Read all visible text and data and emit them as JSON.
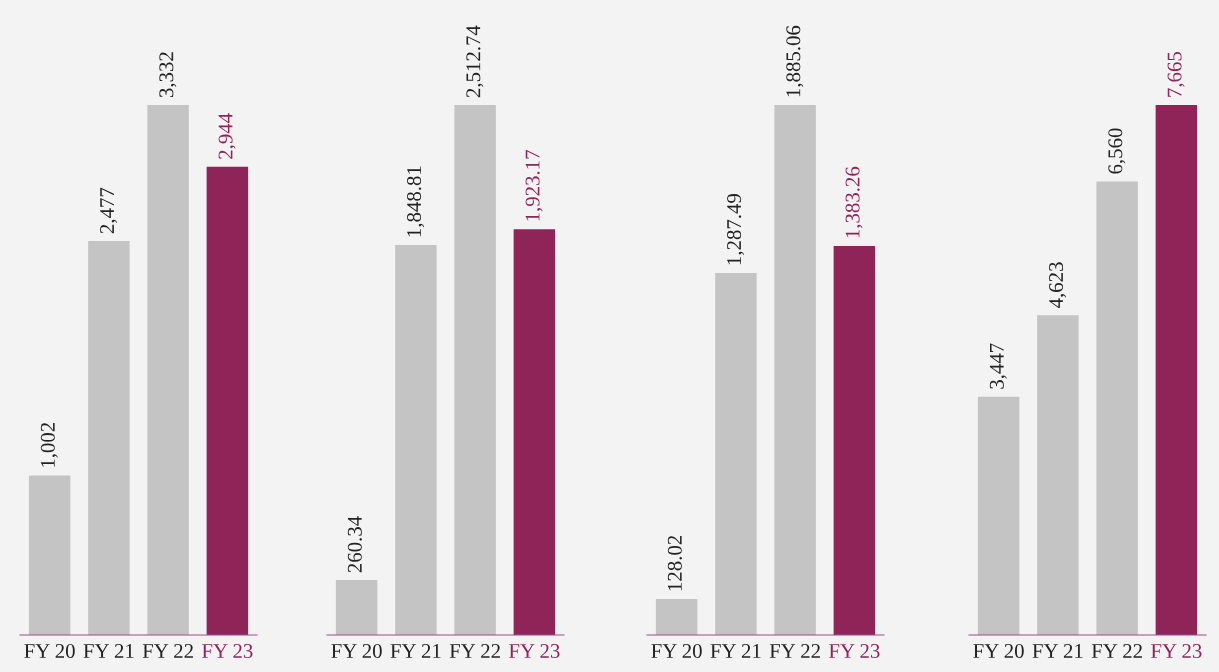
{
  "chart_data": [
    {
      "type": "bar",
      "categories": [
        "FY 20",
        "FY 21",
        "FY 22",
        "FY 23"
      ],
      "values": [
        1002,
        2477,
        3332,
        2944
      ],
      "value_labels": [
        "1,002",
        "2,477",
        "3,332",
        "2,944"
      ],
      "colors": [
        "#c4c4c4",
        "#c4c4c4",
        "#c4c4c4",
        "#8e2458"
      ]
    },
    {
      "type": "bar",
      "categories": [
        "FY 20",
        "FY 21",
        "FY 22",
        "FY 23"
      ],
      "values": [
        260.34,
        1848.81,
        2512.74,
        1923.17
      ],
      "value_labels": [
        "260.34",
        "1,848.81",
        "2,512.74",
        "1,923.17"
      ],
      "colors": [
        "#c4c4c4",
        "#c4c4c4",
        "#c4c4c4",
        "#8e2458"
      ]
    },
    {
      "type": "bar",
      "categories": [
        "FY 20",
        "FY 21",
        "FY 22",
        "FY 23"
      ],
      "values": [
        128.02,
        1287.49,
        1885.06,
        1383.26
      ],
      "value_labels": [
        "128.02",
        "1,287.49",
        "1,885.06",
        "1,383.26"
      ],
      "colors": [
        "#c4c4c4",
        "#c4c4c4",
        "#c4c4c4",
        "#8e2458"
      ]
    },
    {
      "type": "bar",
      "categories": [
        "FY 20",
        "FY 21",
        "FY 22",
        "FY 23"
      ],
      "values": [
        3447,
        4623,
        6560,
        7665
      ],
      "value_labels": [
        "3,447",
        "4,623",
        "6,560",
        "7,665"
      ],
      "colors": [
        "#c4c4c4",
        "#c4c4c4",
        "#c4c4c4",
        "#8e2458"
      ]
    }
  ]
}
